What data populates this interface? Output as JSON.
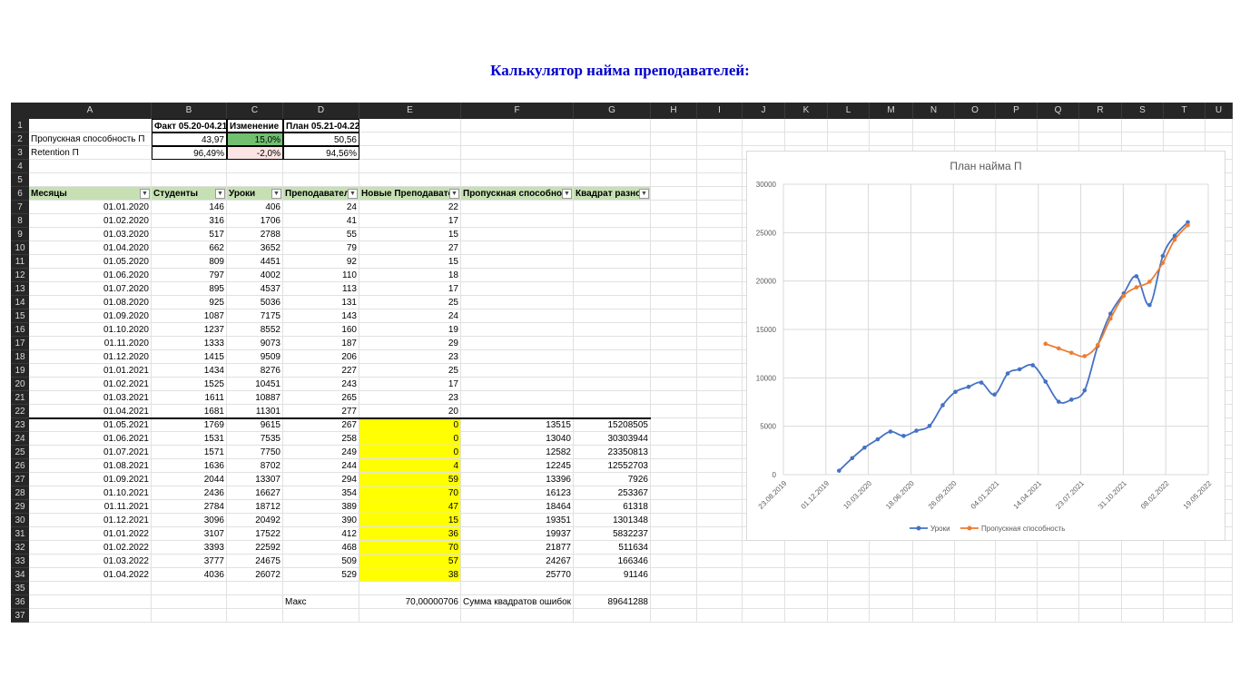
{
  "title": "Калькулятор найма преподавателей:",
  "columns": [
    "A",
    "B",
    "C",
    "D",
    "E",
    "F",
    "G",
    "H",
    "I",
    "J",
    "K",
    "L",
    "M",
    "N",
    "O",
    "P",
    "Q",
    "R",
    "S",
    "T",
    "U"
  ],
  "rows": [
    1,
    2,
    3,
    4,
    5,
    6,
    7,
    8,
    9,
    10,
    11,
    12,
    13,
    14,
    15,
    16,
    17,
    18,
    19,
    20,
    21,
    22,
    23,
    24,
    25,
    26,
    27,
    28,
    29,
    30,
    31,
    32,
    33,
    34,
    35,
    36,
    37
  ],
  "summary": {
    "headers": [
      "Факт 05.20-04.21",
      "Изменение",
      "План 05.21-04.22"
    ],
    "rows": [
      {
        "label": "Пропускная способность П",
        "fact": "43,97",
        "change": "15,0%",
        "plan": "50,56"
      },
      {
        "label": "Retention П",
        "fact": "96,49%",
        "change": "-2,0%",
        "plan": "94,56%"
      }
    ]
  },
  "table": {
    "headers": [
      "Месяцы",
      "Студенты",
      "Уроки",
      "Преподавател",
      "Новые Преподавате",
      "Пропускная способнос",
      "Квадрат разно"
    ],
    "rows": [
      [
        "01.01.2020",
        "146",
        "406",
        "24",
        "22",
        "",
        ""
      ],
      [
        "01.02.2020",
        "316",
        "1706",
        "41",
        "17",
        "",
        ""
      ],
      [
        "01.03.2020",
        "517",
        "2788",
        "55",
        "15",
        "",
        ""
      ],
      [
        "01.04.2020",
        "662",
        "3652",
        "79",
        "27",
        "",
        ""
      ],
      [
        "01.05.2020",
        "809",
        "4451",
        "92",
        "15",
        "",
        ""
      ],
      [
        "01.06.2020",
        "797",
        "4002",
        "110",
        "18",
        "",
        ""
      ],
      [
        "01.07.2020",
        "895",
        "4537",
        "113",
        "17",
        "",
        ""
      ],
      [
        "01.08.2020",
        "925",
        "5036",
        "131",
        "25",
        "",
        ""
      ],
      [
        "01.09.2020",
        "1087",
        "7175",
        "143",
        "24",
        "",
        ""
      ],
      [
        "01.10.2020",
        "1237",
        "8552",
        "160",
        "19",
        "",
        ""
      ],
      [
        "01.11.2020",
        "1333",
        "9073",
        "187",
        "29",
        "",
        ""
      ],
      [
        "01.12.2020",
        "1415",
        "9509",
        "206",
        "23",
        "",
        ""
      ],
      [
        "01.01.2021",
        "1434",
        "8276",
        "227",
        "25",
        "",
        ""
      ],
      [
        "01.02.2021",
        "1525",
        "10451",
        "243",
        "17",
        "",
        ""
      ],
      [
        "01.03.2021",
        "1611",
        "10887",
        "265",
        "23",
        "",
        ""
      ],
      [
        "01.04.2021",
        "1681",
        "11301",
        "277",
        "20",
        "",
        ""
      ],
      [
        "01.05.2021",
        "1769",
        "9615",
        "267",
        "0",
        "13515",
        "15208505"
      ],
      [
        "01.06.2021",
        "1531",
        "7535",
        "258",
        "0",
        "13040",
        "30303944"
      ],
      [
        "01.07.2021",
        "1571",
        "7750",
        "249",
        "0",
        "12582",
        "23350813"
      ],
      [
        "01.08.2021",
        "1636",
        "8702",
        "244",
        "4",
        "12245",
        "12552703"
      ],
      [
        "01.09.2021",
        "2044",
        "13307",
        "294",
        "59",
        "13396",
        "7926"
      ],
      [
        "01.10.2021",
        "2436",
        "16627",
        "354",
        "70",
        "16123",
        "253367"
      ],
      [
        "01.11.2021",
        "2784",
        "18712",
        "389",
        "47",
        "18464",
        "61318"
      ],
      [
        "01.12.2021",
        "3096",
        "20492",
        "390",
        "15",
        "19351",
        "1301348"
      ],
      [
        "01.01.2022",
        "3107",
        "17522",
        "412",
        "36",
        "19937",
        "5832237"
      ],
      [
        "01.02.2022",
        "3393",
        "22592",
        "468",
        "70",
        "21877",
        "511634"
      ],
      [
        "01.03.2022",
        "3777",
        "24675",
        "509",
        "57",
        "24267",
        "166346"
      ],
      [
        "01.04.2022",
        "4036",
        "26072",
        "529",
        "38",
        "25770",
        "91146"
      ]
    ]
  },
  "footer": {
    "max_label": "Макс",
    "max_value": "70,00000706",
    "sse_label": "Сумма квадратов ошибок",
    "sse_value": "89641288"
  },
  "colors": {
    "green_header": "#c6e0b4",
    "yellow": "#ffff00",
    "series1": "#4472c4",
    "series2": "#ed7d31"
  },
  "chart_data": {
    "type": "line",
    "title": "План найма П",
    "x_tick_labels": [
      "23.08.2019",
      "01.12.2019",
      "10.03.2020",
      "18.06.2020",
      "26.09.2020",
      "04.01.2021",
      "14.04.2021",
      "23.07.2021",
      "31.10.2021",
      "08.02.2022",
      "19.05.2022"
    ],
    "y_ticks": [
      0,
      5000,
      10000,
      15000,
      20000,
      25000,
      30000
    ],
    "ylim": [
      0,
      30000
    ],
    "legend_position": "bottom",
    "grid": true,
    "series": [
      {
        "name": "Уроки",
        "color": "#4472c4",
        "x": [
          "2020-01-01",
          "2020-02-01",
          "2020-03-01",
          "2020-04-01",
          "2020-05-01",
          "2020-06-01",
          "2020-07-01",
          "2020-08-01",
          "2020-09-01",
          "2020-10-01",
          "2020-11-01",
          "2020-12-01",
          "2021-01-01",
          "2021-02-01",
          "2021-03-01",
          "2021-04-01",
          "2021-05-01",
          "2021-06-01",
          "2021-07-01",
          "2021-08-01",
          "2021-09-01",
          "2021-10-01",
          "2021-11-01",
          "2021-12-01",
          "2022-01-01",
          "2022-02-01",
          "2022-03-01",
          "2022-04-01"
        ],
        "values": [
          406,
          1706,
          2788,
          3652,
          4451,
          4002,
          4537,
          5036,
          7175,
          8552,
          9073,
          9509,
          8276,
          10451,
          10887,
          11301,
          9615,
          7535,
          7750,
          8702,
          13307,
          16627,
          18712,
          20492,
          17522,
          22592,
          24675,
          26072
        ]
      },
      {
        "name": "Пропускная способность",
        "color": "#ed7d31",
        "x": [
          "2021-05-01",
          "2021-06-01",
          "2021-07-01",
          "2021-08-01",
          "2021-09-01",
          "2021-10-01",
          "2021-11-01",
          "2021-12-01",
          "2022-01-01",
          "2022-02-01",
          "2022-03-01",
          "2022-04-01"
        ],
        "values": [
          13515,
          13040,
          12582,
          12245,
          13396,
          16123,
          18464,
          19351,
          19937,
          21877,
          24267,
          25770
        ]
      }
    ]
  }
}
